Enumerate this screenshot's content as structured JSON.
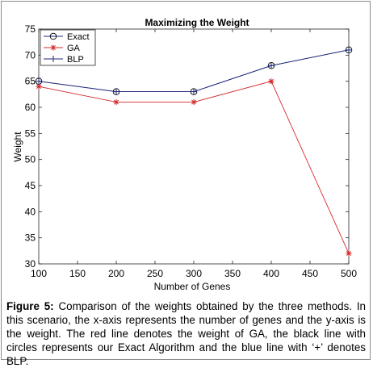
{
  "chart_data": {
    "type": "line",
    "title": "Maximizing the Weight",
    "xlabel": "Number of Genes",
    "ylabel": "Weight",
    "xlim": [
      100,
      500
    ],
    "ylim": [
      30,
      75
    ],
    "x_ticks": [
      "100",
      "150",
      "200",
      "250",
      "300",
      "350",
      "400",
      "450",
      "500"
    ],
    "y_ticks": [
      "30",
      "35",
      "40",
      "45",
      "50",
      "55",
      "60",
      "65",
      "70",
      "75"
    ],
    "grid": false,
    "legend_position": "top-left",
    "x": [
      100,
      200,
      300,
      400,
      500
    ],
    "series": [
      {
        "name": "Exact",
        "values": [
          65,
          63,
          63,
          68,
          71
        ],
        "color": "#000000",
        "marker": "circle",
        "line": "#1f2a7a"
      },
      {
        "name": "GA",
        "values": [
          64,
          61,
          61,
          65,
          32
        ],
        "color": "#d62728",
        "marker": "asterisk",
        "line": "#d62728"
      },
      {
        "name": "BLP",
        "values": [
          65,
          63,
          63,
          68,
          71
        ],
        "color": "#1f2a7a",
        "marker": "plus",
        "line": "#1f2a7a"
      }
    ]
  },
  "caption": {
    "label": "Figure 5:",
    "text": " Comparison of the weights obtained by the three methods. In this scenario, the x-axis represents the number of genes and the y-axis is the weight. The red line denotes the weight of GA, the black line with circles represents our Exact Algorithm and the blue line with ‘+’ denotes BLP."
  }
}
